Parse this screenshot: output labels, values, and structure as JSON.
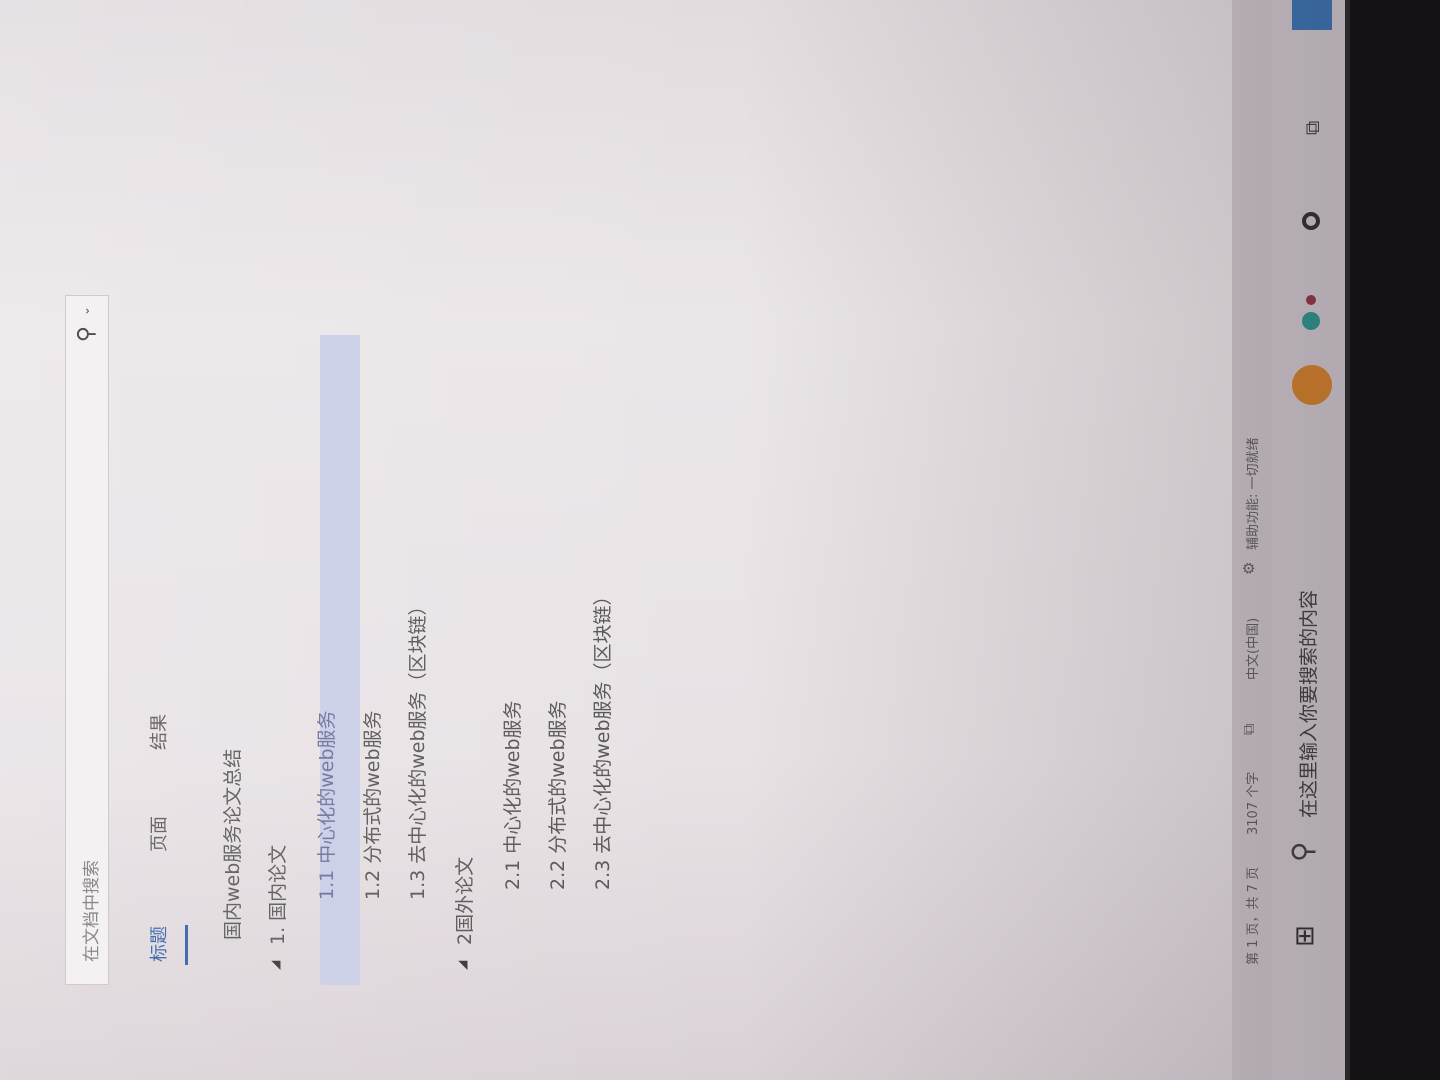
{
  "nav_pane": {
    "search_placeholder": "在文档中搜索",
    "tabs": [
      {
        "label": "标题",
        "active": true
      },
      {
        "label": "页面",
        "active": false
      },
      {
        "label": "结果",
        "active": false
      }
    ],
    "tree": [
      {
        "label": "国内web服务论文总结",
        "level": 0
      },
      {
        "label": "1. 国内论文",
        "level": 0,
        "expanded": true
      },
      {
        "label": "1.1 中心化的web服务",
        "level": 1,
        "selected": true
      },
      {
        "label": "1.2 分布式的web服务",
        "level": 1
      },
      {
        "label": "1.3 去中心化的web服务（区块链）",
        "level": 1
      },
      {
        "label": "2国外论文",
        "level": 0,
        "expanded": true
      },
      {
        "label": "2.1 中心化的web服务",
        "level": 1
      },
      {
        "label": "2.2 分布式的web服务",
        "level": 1
      },
      {
        "label": "2.3 去中心化的web服务（区块链）",
        "level": 1
      }
    ]
  },
  "status_bar": {
    "page": "第 1 页，共 7 页",
    "words": "3107 个字",
    "language": "中文(中国)",
    "accessibility": "辅助功能: 一切就绪"
  },
  "taskbar": {
    "search_placeholder": "在这里输入你要搜索的内容"
  },
  "colors": {
    "accent": "#2a5aa6",
    "selection": "#c9cde6"
  }
}
